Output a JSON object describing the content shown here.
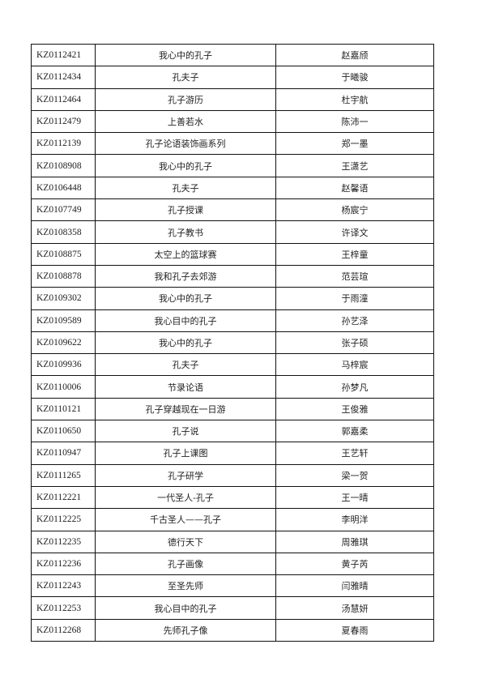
{
  "table": {
    "rows": [
      {
        "id": "KZ0112421",
        "title": "我心中的孔子",
        "name": "赵嘉颀"
      },
      {
        "id": "KZ0112434",
        "title": "孔夫子",
        "name": "于曦骏"
      },
      {
        "id": "KZ0112464",
        "title": "孔子游历",
        "name": "杜宇航"
      },
      {
        "id": "KZ0112479",
        "title": "上善若水",
        "name": "陈沛一"
      },
      {
        "id": "KZ0112139",
        "title": "孔子论语装饰画系列",
        "name": "郑一墨"
      },
      {
        "id": "KZ0108908",
        "title": "我心中的孔子",
        "name": "王潇艺"
      },
      {
        "id": "KZ0106448",
        "title": "孔夫子",
        "name": "赵馨语"
      },
      {
        "id": "KZ0107749",
        "title": "孔子授课",
        "name": "杨宸宁"
      },
      {
        "id": "KZ0108358",
        "title": "孔子教书",
        "name": "许译文"
      },
      {
        "id": "KZ0108875",
        "title": "太空上的篮球赛",
        "name": "王梓童"
      },
      {
        "id": "KZ0108878",
        "title": "我和孔子去郊游",
        "name": "范芸瑄"
      },
      {
        "id": "KZ0109302",
        "title": "我心中的孔子",
        "name": "于雨潼"
      },
      {
        "id": "KZ0109589",
        "title": "我心目中的孔子",
        "name": "孙艺泽"
      },
      {
        "id": "KZ0109622",
        "title": "我心中的孔子",
        "name": "张子硕"
      },
      {
        "id": "KZ0109936",
        "title": "孔夫子",
        "name": "马梓宸"
      },
      {
        "id": "KZ0110006",
        "title": "节录论语",
        "name": "孙梦凡"
      },
      {
        "id": "KZ0110121",
        "title": "孔子穿越现在一日游",
        "name": "王俊雅"
      },
      {
        "id": "KZ0110650",
        "title": "孔子说",
        "name": "郭嘉柔"
      },
      {
        "id": "KZ0110947",
        "title": "孔子上课图",
        "name": "王艺轩"
      },
      {
        "id": "KZ0111265",
        "title": "孔子研学",
        "name": "梁一贺"
      },
      {
        "id": "KZ0112221",
        "title": "一代圣人-孔子",
        "name": "王一晴"
      },
      {
        "id": "KZ0112225",
        "title": "千古圣人——孔子",
        "name": "李明洋"
      },
      {
        "id": "KZ0112235",
        "title": "德行天下",
        "name": "周雅琪"
      },
      {
        "id": "KZ0112236",
        "title": "孔子画像",
        "name": "黄子芮"
      },
      {
        "id": "KZ0112243",
        "title": "至圣先师",
        "name": "闫雅晴"
      },
      {
        "id": "KZ0112253",
        "title": "我心目中的孔子",
        "name": "汤慧妍"
      },
      {
        "id": "KZ0112268",
        "title": "先师孔子像",
        "name": "夏春雨"
      }
    ]
  }
}
